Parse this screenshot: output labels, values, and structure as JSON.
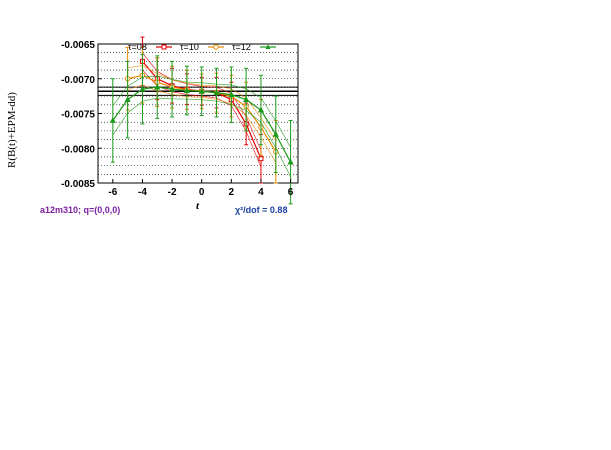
{
  "chart_data": {
    "type": "line",
    "xlabel": "t",
    "ylabel": "R(B(t)+EPM-dd)",
    "xlim": [
      -7,
      6.5
    ],
    "ylim": [
      -0.0085,
      -0.0065
    ],
    "x_ticks": [
      "-6",
      "-4",
      "-2",
      "0",
      "2",
      "4",
      "6"
    ],
    "y_ticks": [
      "-0.0065",
      "-0.0070",
      "-0.0075",
      "-0.0080",
      "-0.0085"
    ],
    "legend_position": "top",
    "grid": true,
    "series": [
      {
        "name": "τ=08",
        "color": "#e00000",
        "marker": "square",
        "x": [
          -4,
          -3,
          -2,
          -1,
          0,
          1,
          2,
          3,
          4
        ],
        "y": [
          -0.00675,
          -0.007,
          -0.0071,
          -0.00715,
          -0.00718,
          -0.0072,
          -0.0073,
          -0.00765,
          -0.00815
        ],
        "err": [
          0.00035,
          0.0003,
          0.00025,
          0.00022,
          0.0002,
          0.00022,
          0.00025,
          0.0003,
          0.00035
        ]
      },
      {
        "name": "τ=10",
        "color": "#e88a00",
        "marker": "circle",
        "x": [
          -5,
          -4,
          -3,
          -2,
          -1,
          0,
          1,
          2,
          3,
          4,
          5
        ],
        "y": [
          -0.007,
          -0.00695,
          -0.00705,
          -0.00712,
          -0.00716,
          -0.00718,
          -0.0072,
          -0.00725,
          -0.0074,
          -0.0077,
          -0.00805
        ],
        "err": [
          0.00045,
          0.0004,
          0.00035,
          0.0003,
          0.00028,
          0.00025,
          0.00028,
          0.0003,
          0.00035,
          0.0004,
          0.00045
        ]
      },
      {
        "name": "τ=12",
        "color": "#1a9a1a",
        "marker": "triangle",
        "x": [
          -6,
          -5,
          -4,
          -3,
          -2,
          -1,
          0,
          1,
          2,
          3,
          4,
          5,
          6
        ],
        "y": [
          -0.0076,
          -0.0073,
          -0.00715,
          -0.00712,
          -0.00715,
          -0.00717,
          -0.00718,
          -0.0072,
          -0.00723,
          -0.0073,
          -0.00745,
          -0.0078,
          -0.0082
        ],
        "err": [
          0.0006,
          0.00055,
          0.0005,
          0.00045,
          0.0004,
          0.00035,
          0.00035,
          0.00035,
          0.0004,
          0.00045,
          0.0005,
          0.00055,
          0.0006
        ]
      }
    ],
    "fit_band": {
      "center": -0.00718,
      "half_width": 6e-05
    },
    "footer_left": "a12m310; q=(0,0,0)",
    "footer_right": "χ²/dof = 0.88"
  }
}
